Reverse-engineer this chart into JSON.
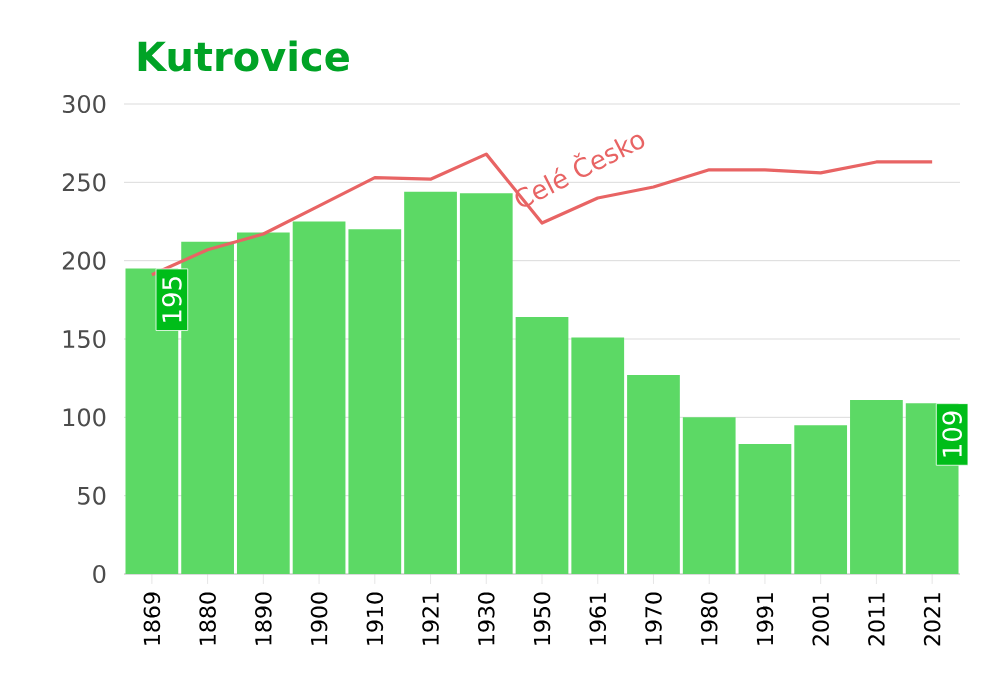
{
  "chart_data": {
    "type": "bar",
    "title": "Kutrovice",
    "categories": [
      "1869",
      "1880",
      "1890",
      "1900",
      "1910",
      "1921",
      "1930",
      "1950",
      "1961",
      "1970",
      "1980",
      "1991",
      "2001",
      "2011",
      "2021"
    ],
    "series": [
      {
        "color": "#5cd965",
        "values": [
          195,
          212,
          218,
          225,
          220,
          244,
          243,
          164,
          151,
          127,
          100,
          83,
          95,
          111,
          109
        ],
        "value_labels": [
          "195",
          null,
          null,
          null,
          null,
          null,
          null,
          null,
          null,
          null,
          null,
          null,
          null,
          null,
          "109"
        ]
      },
      {
        "type": "line",
        "name": "Celé Česko",
        "color": "#e86464",
        "values": [
          191,
          207,
          217,
          235,
          253,
          252,
          268,
          224,
          240,
          247,
          258,
          258,
          256,
          263,
          263
        ]
      }
    ],
    "ylim": [
      0,
      300
    ],
    "yticks": [
      0,
      50,
      100,
      150,
      200,
      250,
      300
    ],
    "grid": "y",
    "marker": "none"
  }
}
